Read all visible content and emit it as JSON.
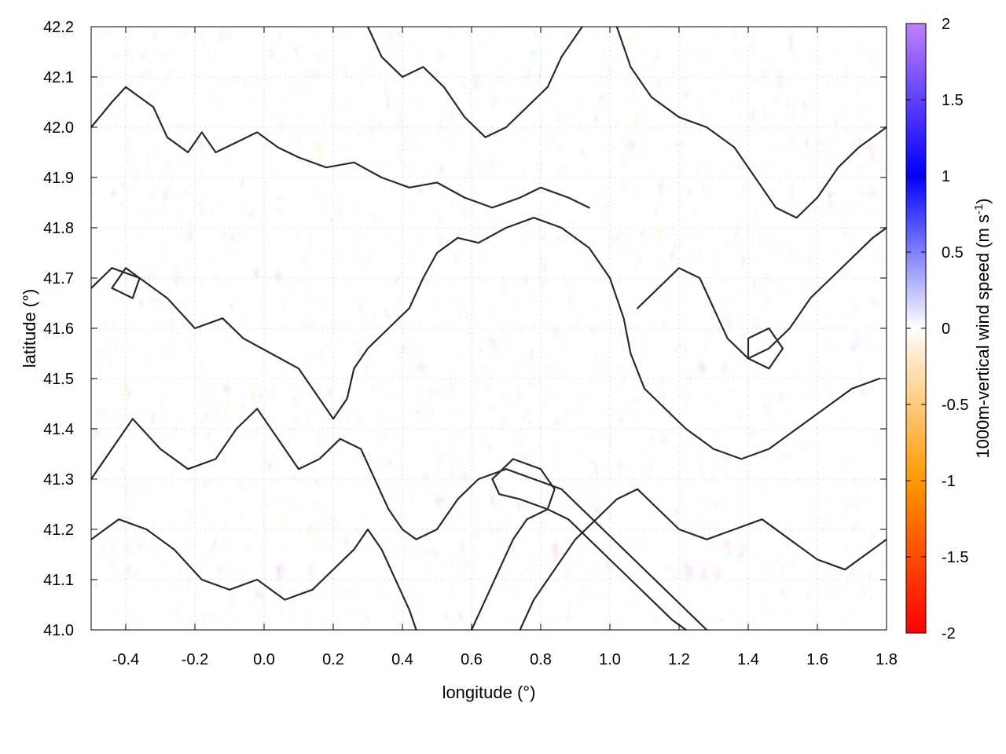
{
  "chart_data": {
    "type": "heatmap",
    "xlabel": "longitude (°)",
    "ylabel": "latitude (°)",
    "xlim": [
      -0.5,
      1.8
    ],
    "ylim": [
      41.0,
      42.2
    ],
    "x_ticks": [
      "-0.4",
      "-0.2",
      "0.0",
      "0.2",
      "0.4",
      "0.6",
      "0.8",
      "1.0",
      "1.2",
      "1.4",
      "1.6",
      "1.8"
    ],
    "x_tick_values": [
      -0.4,
      -0.2,
      0.0,
      0.2,
      0.4,
      0.6,
      0.8,
      1.0,
      1.2,
      1.4,
      1.6,
      1.8
    ],
    "y_ticks": [
      "41.0",
      "41.1",
      "41.2",
      "41.3",
      "41.4",
      "41.5",
      "41.6",
      "41.7",
      "41.8",
      "41.9",
      "42.0",
      "42.1",
      "42.2"
    ],
    "y_tick_values": [
      41.0,
      41.1,
      41.2,
      41.3,
      41.4,
      41.5,
      41.6,
      41.7,
      41.8,
      41.9,
      42.0,
      42.1,
      42.2
    ],
    "grid": true,
    "colorbar": {
      "label_main": "1000m-vertical wind speed (m s",
      "label_sup": "-1",
      "label_end": ")",
      "range": [
        -2,
        2
      ],
      "ticks": [
        "2",
        "1.5",
        "1",
        "0.5",
        "0",
        "-0.5",
        "-1",
        "-1.5",
        "-2"
      ],
      "tick_values": [
        2,
        1.5,
        1,
        0.5,
        0,
        -0.5,
        -1,
        -1.5,
        -2
      ],
      "colors": [
        "#ff0000",
        "#ff9900",
        "#fff2e0",
        "#ffffff",
        "#e6e6ff",
        "#0000ff",
        "#c080ff"
      ],
      "stops": [
        -2,
        -1,
        -0.1,
        0,
        0.1,
        1,
        2
      ]
    },
    "contours": [
      [
        [
          -0.5,
          42.0
        ],
        [
          -0.44,
          42.05
        ],
        [
          -0.4,
          42.08
        ],
        [
          -0.32,
          42.04
        ],
        [
          -0.28,
          41.98
        ],
        [
          -0.22,
          41.95
        ],
        [
          -0.18,
          41.99
        ],
        [
          -0.14,
          41.95
        ],
        [
          -0.08,
          41.97
        ],
        [
          -0.02,
          41.99
        ],
        [
          0.04,
          41.96
        ],
        [
          0.1,
          41.94
        ],
        [
          0.18,
          41.92
        ],
        [
          0.26,
          41.93
        ],
        [
          0.34,
          41.9
        ],
        [
          0.42,
          41.88
        ],
        [
          0.5,
          41.89
        ],
        [
          0.58,
          41.86
        ],
        [
          0.66,
          41.84
        ],
        [
          0.74,
          41.86
        ],
        [
          0.8,
          41.88
        ],
        [
          0.88,
          41.86
        ],
        [
          0.94,
          41.84
        ]
      ],
      [
        [
          -0.5,
          41.68
        ],
        [
          -0.44,
          41.72
        ],
        [
          -0.36,
          41.7
        ],
        [
          -0.28,
          41.66
        ],
        [
          -0.2,
          41.6
        ],
        [
          -0.12,
          41.62
        ],
        [
          -0.06,
          41.58
        ],
        [
          0.02,
          41.55
        ],
        [
          0.1,
          41.52
        ],
        [
          0.16,
          41.46
        ],
        [
          0.2,
          41.42
        ],
        [
          0.24,
          41.46
        ],
        [
          0.26,
          41.52
        ],
        [
          0.3,
          41.56
        ],
        [
          0.36,
          41.6
        ],
        [
          0.42,
          41.64
        ],
        [
          0.46,
          41.7
        ],
        [
          0.5,
          41.75
        ],
        [
          0.56,
          41.78
        ],
        [
          0.62,
          41.77
        ],
        [
          0.7,
          41.8
        ],
        [
          0.78,
          41.82
        ],
        [
          0.86,
          41.8
        ],
        [
          0.94,
          41.76
        ],
        [
          1.0,
          41.7
        ],
        [
          1.04,
          41.62
        ],
        [
          1.06,
          41.55
        ],
        [
          1.1,
          41.48
        ],
        [
          1.16,
          41.44
        ],
        [
          1.22,
          41.4
        ],
        [
          1.3,
          41.36
        ],
        [
          1.38,
          41.34
        ],
        [
          1.46,
          41.36
        ],
        [
          1.54,
          41.4
        ],
        [
          1.62,
          41.44
        ],
        [
          1.7,
          41.48
        ],
        [
          1.78,
          41.5
        ]
      ],
      [
        [
          -0.5,
          41.3
        ],
        [
          -0.44,
          41.36
        ],
        [
          -0.38,
          41.42
        ],
        [
          -0.3,
          41.36
        ],
        [
          -0.22,
          41.32
        ],
        [
          -0.14,
          41.34
        ],
        [
          -0.08,
          41.4
        ],
        [
          -0.02,
          41.44
        ],
        [
          0.04,
          41.38
        ],
        [
          0.1,
          41.32
        ],
        [
          0.16,
          41.34
        ],
        [
          0.22,
          41.38
        ],
        [
          0.28,
          41.36
        ],
        [
          0.32,
          41.3
        ],
        [
          0.36,
          41.24
        ],
        [
          0.4,
          41.2
        ],
        [
          0.44,
          41.18
        ],
        [
          0.5,
          41.2
        ],
        [
          0.56,
          41.26
        ],
        [
          0.62,
          41.3
        ],
        [
          0.7,
          41.32
        ],
        [
          0.78,
          41.3
        ],
        [
          0.86,
          41.28
        ],
        [
          0.92,
          41.24
        ],
        [
          0.98,
          41.2
        ],
        [
          1.04,
          41.16
        ],
        [
          1.1,
          41.12
        ],
        [
          1.16,
          41.08
        ],
        [
          1.22,
          41.04
        ],
        [
          1.28,
          41.0
        ]
      ],
      [
        [
          -0.5,
          41.18
        ],
        [
          -0.42,
          41.22
        ],
        [
          -0.34,
          41.2
        ],
        [
          -0.26,
          41.16
        ],
        [
          -0.18,
          41.1
        ],
        [
          -0.1,
          41.08
        ],
        [
          -0.02,
          41.1
        ],
        [
          0.06,
          41.06
        ],
        [
          0.14,
          41.08
        ],
        [
          0.2,
          41.12
        ],
        [
          0.26,
          41.16
        ],
        [
          0.3,
          41.2
        ],
        [
          0.34,
          41.16
        ],
        [
          0.38,
          41.1
        ],
        [
          0.42,
          41.04
        ],
        [
          0.44,
          41.0
        ]
      ],
      [
        [
          0.6,
          41.0
        ],
        [
          0.64,
          41.06
        ],
        [
          0.68,
          41.12
        ],
        [
          0.72,
          41.18
        ],
        [
          0.76,
          41.22
        ],
        [
          0.82,
          41.24
        ],
        [
          0.88,
          41.22
        ],
        [
          0.94,
          41.18
        ],
        [
          1.0,
          41.14
        ],
        [
          1.06,
          41.1
        ],
        [
          1.12,
          41.06
        ],
        [
          1.18,
          41.02
        ],
        [
          1.22,
          41.0
        ]
      ],
      [
        [
          0.3,
          42.2
        ],
        [
          0.34,
          42.14
        ],
        [
          0.4,
          42.1
        ],
        [
          0.46,
          42.12
        ],
        [
          0.52,
          42.08
        ],
        [
          0.58,
          42.02
        ],
        [
          0.64,
          41.98
        ],
        [
          0.7,
          42.0
        ],
        [
          0.76,
          42.04
        ],
        [
          0.82,
          42.08
        ],
        [
          0.86,
          42.14
        ],
        [
          0.9,
          42.18
        ],
        [
          0.92,
          42.2
        ]
      ],
      [
        [
          1.02,
          42.2
        ],
        [
          1.06,
          42.12
        ],
        [
          1.12,
          42.06
        ],
        [
          1.2,
          42.02
        ],
        [
          1.28,
          42.0
        ],
        [
          1.36,
          41.96
        ],
        [
          1.42,
          41.9
        ],
        [
          1.48,
          41.84
        ],
        [
          1.54,
          41.82
        ],
        [
          1.6,
          41.86
        ],
        [
          1.66,
          41.92
        ],
        [
          1.72,
          41.96
        ],
        [
          1.8,
          42.0
        ]
      ],
      [
        [
          1.08,
          41.64
        ],
        [
          1.14,
          41.68
        ],
        [
          1.2,
          41.72
        ],
        [
          1.26,
          41.7
        ],
        [
          1.3,
          41.64
        ],
        [
          1.34,
          41.58
        ],
        [
          1.4,
          41.54
        ],
        [
          1.46,
          41.56
        ],
        [
          1.52,
          41.6
        ],
        [
          1.58,
          41.66
        ],
        [
          1.64,
          41.7
        ],
        [
          1.7,
          41.74
        ],
        [
          1.76,
          41.78
        ],
        [
          1.8,
          41.8
        ]
      ],
      [
        [
          0.74,
          41.0
        ],
        [
          0.78,
          41.06
        ],
        [
          0.84,
          41.12
        ],
        [
          0.9,
          41.18
        ],
        [
          0.96,
          41.22
        ],
        [
          1.02,
          41.26
        ],
        [
          1.08,
          41.28
        ],
        [
          1.14,
          41.24
        ],
        [
          1.2,
          41.2
        ],
        [
          1.28,
          41.18
        ],
        [
          1.36,
          41.2
        ],
        [
          1.44,
          41.22
        ],
        [
          1.52,
          41.18
        ],
        [
          1.6,
          41.14
        ],
        [
          1.68,
          41.12
        ],
        [
          1.76,
          41.16
        ],
        [
          1.8,
          41.18
        ]
      ],
      [
        [
          0.66,
          41.3
        ],
        [
          0.72,
          41.34
        ],
        [
          0.8,
          41.32
        ],
        [
          0.84,
          41.28
        ],
        [
          0.82,
          41.24
        ],
        [
          0.74,
          41.26
        ],
        [
          0.68,
          41.27
        ],
        [
          0.66,
          41.3
        ]
      ],
      [
        [
          -0.44,
          41.68
        ],
        [
          -0.4,
          41.72
        ],
        [
          -0.36,
          41.7
        ],
        [
          -0.38,
          41.66
        ],
        [
          -0.44,
          41.68
        ]
      ],
      [
        [
          1.4,
          41.58
        ],
        [
          1.46,
          41.6
        ],
        [
          1.5,
          41.56
        ],
        [
          1.46,
          41.52
        ],
        [
          1.4,
          41.54
        ],
        [
          1.4,
          41.58
        ]
      ]
    ]
  }
}
